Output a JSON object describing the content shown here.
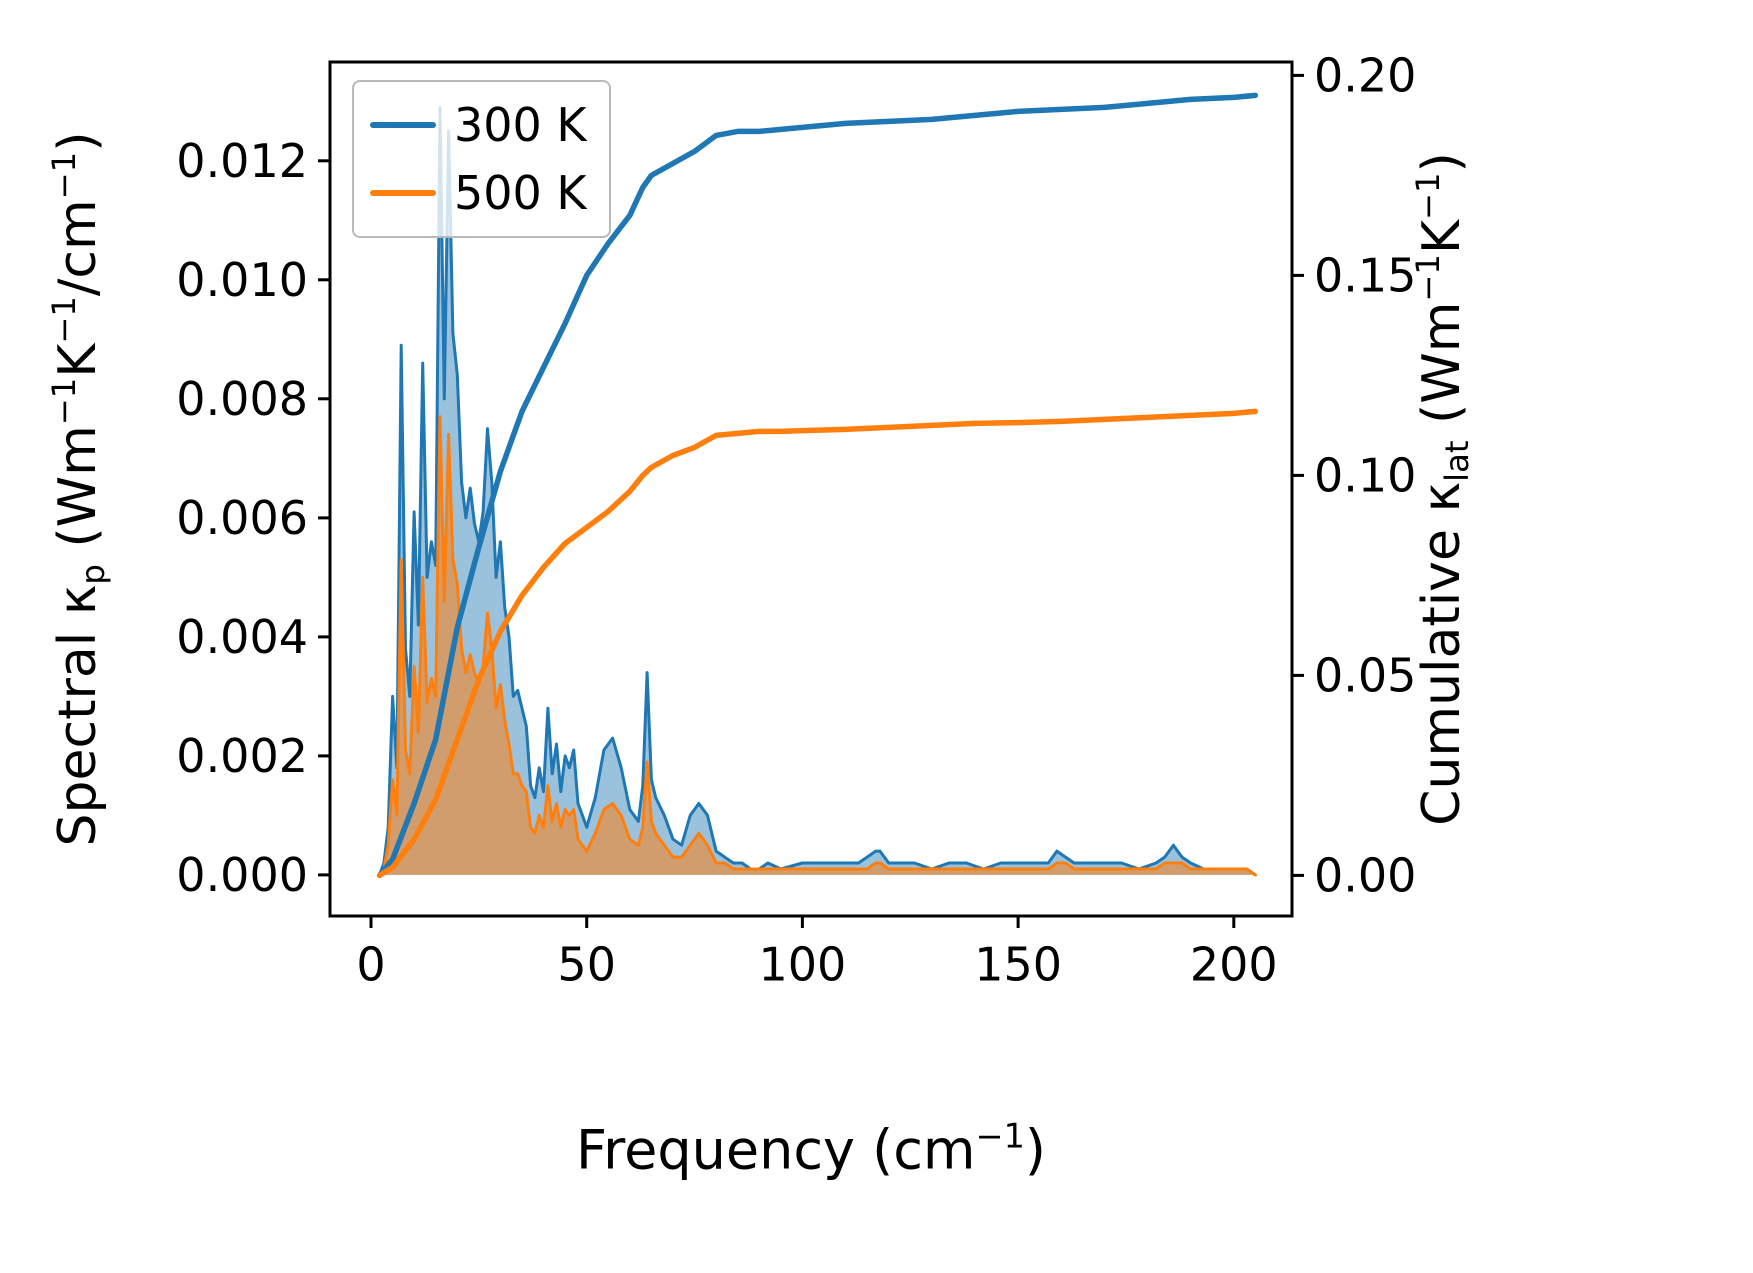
{
  "figure": {
    "background": "#ffffff"
  },
  "axes": {
    "xlabel_text": "Frequency (cm⁻¹)",
    "ylabel_left_text": "Spectral κₚ (Wm⁻¹K⁻¹/cm⁻¹)",
    "ylabel_right_text": "Cumulative κₗₐₜ (Wm⁻¹K⁻¹)",
    "xlabel_parts": [
      {
        "t": "Frequency (cm"
      },
      {
        "t": "−1",
        "pos": "sup"
      },
      {
        "t": ")"
      }
    ],
    "ylabel_left_parts": [
      {
        "t": "Spectral κ"
      },
      {
        "t": "p",
        "pos": "sub"
      },
      {
        "t": " (Wm"
      },
      {
        "t": "−1",
        "pos": "sup"
      },
      {
        "t": "K"
      },
      {
        "t": "−1",
        "pos": "sup"
      },
      {
        "t": "/cm"
      },
      {
        "t": "−1",
        "pos": "sup"
      },
      {
        "t": ")"
      }
    ],
    "ylabel_right_parts": [
      {
        "t": "Cumulative κ"
      },
      {
        "t": "lat",
        "pos": "sub"
      },
      {
        "t": " (Wm"
      },
      {
        "t": "−1",
        "pos": "sup"
      },
      {
        "t": "K"
      },
      {
        "t": "−1",
        "pos": "sup"
      },
      {
        "t": ")"
      }
    ]
  },
  "legend": {
    "position": "upper left",
    "items": [
      {
        "label": "300 K",
        "color": "#1f77b4"
      },
      {
        "label": "500 K",
        "color": "#ff7f0e"
      }
    ]
  },
  "chart_data": {
    "type": "area+line dual-axis",
    "title": "",
    "grid": false,
    "legend_position": "upper left",
    "x_axis": {
      "label": "Frequency (cm⁻¹)",
      "lim": [
        -9.5,
        213.5
      ],
      "ticks": [
        0,
        50,
        100,
        150,
        200
      ],
      "tick_labels": [
        "0",
        "50",
        "100",
        "150",
        "200"
      ]
    },
    "y_axis_left": {
      "label": "Spectral κₚ (Wm⁻¹K⁻¹/cm⁻¹)",
      "lim": [
        -0.00069,
        0.01366
      ],
      "ticks": [
        0.0,
        0.002,
        0.004,
        0.006,
        0.008,
        0.01,
        0.012
      ],
      "tick_labels": [
        "0.000",
        "0.002",
        "0.004",
        "0.006",
        "0.008",
        "0.010",
        "0.012"
      ]
    },
    "y_axis_right": {
      "label": "Cumulative κₗₐₜ (Wm⁻¹K⁻¹)",
      "lim": [
        -0.01015,
        0.20335
      ],
      "ticks": [
        0.0,
        0.05,
        0.1,
        0.15,
        0.2
      ],
      "tick_labels": [
        "0.00",
        "0.05",
        "0.10",
        "0.15",
        "0.20"
      ]
    },
    "series": [
      {
        "name": "300 K spectral",
        "legend": "300 K",
        "axis": "left",
        "type": "area",
        "color": "#1f77b4",
        "fill_opacity": 0.45,
        "x": [
          2,
          3,
          4,
          5,
          6,
          7,
          8,
          9,
          10,
          11,
          12,
          13,
          14,
          15,
          16,
          17,
          18,
          19,
          20,
          21,
          22,
          23,
          24,
          25,
          26,
          27,
          28,
          29,
          30,
          31,
          32,
          33,
          34,
          35,
          36,
          37,
          38,
          39,
          40,
          41,
          42,
          43,
          44,
          45,
          46,
          47,
          48,
          49,
          50,
          52,
          54,
          56,
          58,
          60,
          62,
          63,
          64,
          65,
          66,
          68,
          70,
          72,
          74,
          75,
          76,
          77,
          78,
          80,
          82,
          84,
          86,
          88,
          90,
          92,
          95,
          100,
          105,
          110,
          113,
          115,
          117,
          118,
          120,
          123,
          126,
          130,
          134,
          138,
          142,
          146,
          150,
          154,
          157,
          159,
          161,
          163,
          166,
          170,
          174,
          178,
          182,
          184,
          186,
          188,
          190,
          193,
          196,
          200,
          203,
          205
        ],
        "y": [
          0.0,
          0.0002,
          0.0008,
          0.003,
          0.0018,
          0.0089,
          0.0038,
          0.003,
          0.0061,
          0.0042,
          0.0086,
          0.005,
          0.0056,
          0.0052,
          0.0129,
          0.008,
          0.0125,
          0.0091,
          0.0084,
          0.0066,
          0.006,
          0.0065,
          0.0059,
          0.0056,
          0.0061,
          0.0075,
          0.0066,
          0.005,
          0.0056,
          0.0045,
          0.004,
          0.003,
          0.0031,
          0.0028,
          0.0025,
          0.0015,
          0.0013,
          0.0018,
          0.0014,
          0.0028,
          0.0017,
          0.0022,
          0.0014,
          0.002,
          0.0018,
          0.0021,
          0.0012,
          0.001,
          0.0008,
          0.0013,
          0.0021,
          0.0023,
          0.0018,
          0.0011,
          0.0009,
          0.0015,
          0.0034,
          0.0016,
          0.0013,
          0.001,
          0.0006,
          0.0005,
          0.001,
          0.0011,
          0.0012,
          0.0011,
          0.001,
          0.0004,
          0.0003,
          0.0002,
          0.0002,
          0.0001,
          0.0001,
          0.0002,
          0.0001,
          0.0002,
          0.0002,
          0.0002,
          0.0002,
          0.0003,
          0.0004,
          0.0004,
          0.0002,
          0.0002,
          0.0002,
          0.0001,
          0.0002,
          0.0002,
          0.0001,
          0.0002,
          0.0002,
          0.0002,
          0.0002,
          0.0004,
          0.0003,
          0.0002,
          0.0002,
          0.0002,
          0.0002,
          0.0001,
          0.0002,
          0.0003,
          0.0005,
          0.0003,
          0.0002,
          0.0001,
          0.0001,
          0.0001,
          0.0001,
          0.0
        ]
      },
      {
        "name": "500 K spectral",
        "legend": "500 K",
        "axis": "left",
        "type": "area",
        "color": "#ff7f0e",
        "fill_opacity": 0.55,
        "x": [
          2,
          3,
          4,
          5,
          6,
          7,
          8,
          9,
          10,
          11,
          12,
          13,
          14,
          15,
          16,
          17,
          18,
          19,
          20,
          21,
          22,
          23,
          24,
          25,
          26,
          27,
          28,
          29,
          30,
          31,
          32,
          33,
          34,
          35,
          36,
          37,
          38,
          39,
          40,
          41,
          42,
          43,
          44,
          45,
          46,
          47,
          48,
          49,
          50,
          52,
          54,
          56,
          58,
          60,
          62,
          63,
          64,
          65,
          66,
          68,
          70,
          72,
          74,
          75,
          76,
          77,
          78,
          80,
          82,
          84,
          86,
          88,
          90,
          92,
          95,
          100,
          105,
          110,
          113,
          115,
          117,
          118,
          120,
          123,
          126,
          130,
          134,
          138,
          142,
          146,
          150,
          154,
          157,
          159,
          161,
          163,
          166,
          170,
          174,
          178,
          182,
          184,
          186,
          188,
          190,
          193,
          196,
          200,
          203,
          205
        ],
        "y": [
          0.0,
          0.0001,
          0.0005,
          0.0016,
          0.001,
          0.0053,
          0.0021,
          0.0017,
          0.0035,
          0.0024,
          0.005,
          0.0029,
          0.0033,
          0.003,
          0.0077,
          0.0046,
          0.0074,
          0.0053,
          0.0049,
          0.0038,
          0.0034,
          0.0037,
          0.0034,
          0.0032,
          0.0035,
          0.0044,
          0.0038,
          0.0028,
          0.0032,
          0.0026,
          0.0022,
          0.0017,
          0.0017,
          0.0015,
          0.0014,
          0.0008,
          0.0007,
          0.001,
          0.0008,
          0.0015,
          0.0009,
          0.0012,
          0.0008,
          0.0011,
          0.001,
          0.0011,
          0.0006,
          0.0005,
          0.0004,
          0.0007,
          0.0011,
          0.0012,
          0.001,
          0.0006,
          0.0005,
          0.0008,
          0.0019,
          0.0009,
          0.0007,
          0.0005,
          0.0003,
          0.0003,
          0.0005,
          0.0006,
          0.0007,
          0.0006,
          0.0005,
          0.0002,
          0.0002,
          0.0001,
          0.0001,
          0.0001,
          0.0001,
          0.0001,
          0.0001,
          0.0001,
          0.0001,
          0.0001,
          0.0001,
          0.0001,
          0.0002,
          0.0002,
          0.0001,
          0.0001,
          0.0001,
          0.0001,
          0.0001,
          0.0001,
          0.0001,
          0.0001,
          0.0001,
          0.0001,
          0.0001,
          0.0002,
          0.0002,
          0.0001,
          0.0001,
          0.0001,
          0.0001,
          0.0001,
          0.0001,
          0.0002,
          0.0002,
          0.0002,
          0.0001,
          0.0001,
          0.0001,
          0.0001,
          0.0001,
          0.0
        ]
      },
      {
        "name": "300 K cumulative",
        "legend": "300 K",
        "axis": "right",
        "type": "line",
        "color": "#1f77b4",
        "x": [
          2,
          5,
          10,
          15,
          20,
          25,
          30,
          35,
          40,
          45,
          50,
          55,
          60,
          63,
          65,
          70,
          75,
          80,
          85,
          90,
          95,
          100,
          110,
          120,
          130,
          140,
          150,
          160,
          170,
          180,
          190,
          200,
          205
        ],
        "y": [
          0.0,
          0.004,
          0.018,
          0.034,
          0.062,
          0.082,
          0.101,
          0.116,
          0.127,
          0.138,
          0.15,
          0.158,
          0.165,
          0.172,
          0.175,
          0.178,
          0.181,
          0.185,
          0.186,
          0.186,
          0.1865,
          0.187,
          0.188,
          0.1885,
          0.189,
          0.19,
          0.191,
          0.1915,
          0.192,
          0.193,
          0.194,
          0.1945,
          0.195
        ]
      },
      {
        "name": "500 K cumulative",
        "legend": "500 K",
        "axis": "right",
        "type": "line",
        "color": "#ff7f0e",
        "x": [
          2,
          5,
          10,
          15,
          20,
          25,
          30,
          35,
          40,
          45,
          50,
          55,
          60,
          63,
          65,
          70,
          75,
          80,
          85,
          90,
          95,
          100,
          110,
          120,
          130,
          140,
          150,
          160,
          170,
          180,
          190,
          200,
          205
        ],
        "y": [
          0.0,
          0.002,
          0.009,
          0.019,
          0.034,
          0.049,
          0.061,
          0.07,
          0.077,
          0.083,
          0.087,
          0.091,
          0.096,
          0.1,
          0.102,
          0.105,
          0.107,
          0.11,
          0.1105,
          0.111,
          0.111,
          0.1112,
          0.1115,
          0.112,
          0.1125,
          0.113,
          0.1132,
          0.1135,
          0.114,
          0.1145,
          0.115,
          0.1155,
          0.116
        ]
      }
    ]
  }
}
